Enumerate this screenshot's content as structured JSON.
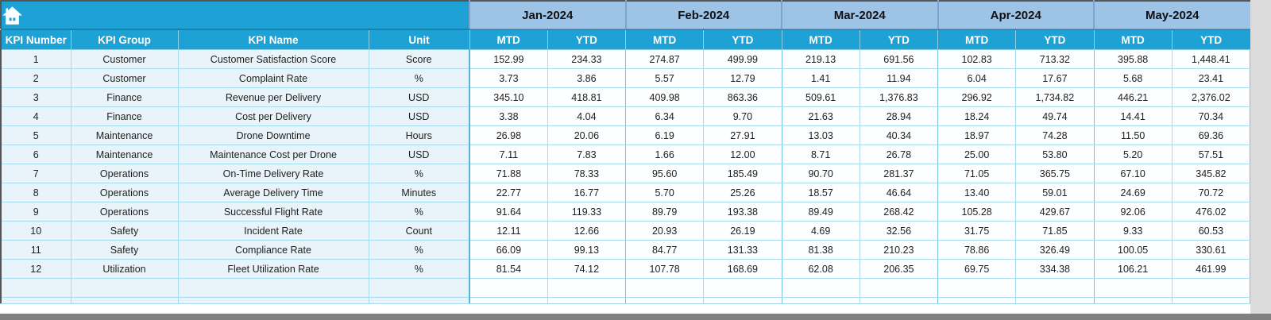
{
  "table": {
    "left_headers": [
      "KPI Number",
      "KPI Group",
      "KPI Name",
      "Unit"
    ],
    "months": [
      "Jan-2024",
      "Feb-2024",
      "Mar-2024",
      "Apr-2024",
      "May-2024"
    ],
    "sub_headers": [
      "MTD",
      "YTD"
    ],
    "rows": [
      {
        "number": "1",
        "group": "Customer",
        "name": "Customer Satisfaction Score",
        "unit": "Score",
        "values": [
          "152.99",
          "234.33",
          "274.87",
          "499.99",
          "219.13",
          "691.56",
          "102.83",
          "713.32",
          "395.88",
          "1,448.41"
        ]
      },
      {
        "number": "2",
        "group": "Customer",
        "name": "Complaint Rate",
        "unit": "%",
        "values": [
          "3.73",
          "3.86",
          "5.57",
          "12.79",
          "1.41",
          "11.94",
          "6.04",
          "17.67",
          "5.68",
          "23.41"
        ]
      },
      {
        "number": "3",
        "group": "Finance",
        "name": "Revenue per Delivery",
        "unit": "USD",
        "values": [
          "345.10",
          "418.81",
          "409.98",
          "863.36",
          "509.61",
          "1,376.83",
          "296.92",
          "1,734.82",
          "446.21",
          "2,376.02"
        ]
      },
      {
        "number": "4",
        "group": "Finance",
        "name": "Cost per Delivery",
        "unit": "USD",
        "values": [
          "3.38",
          "4.04",
          "6.34",
          "9.70",
          "21.63",
          "28.94",
          "18.24",
          "49.74",
          "14.41",
          "70.34"
        ]
      },
      {
        "number": "5",
        "group": "Maintenance",
        "name": "Drone Downtime",
        "unit": "Hours",
        "values": [
          "26.98",
          "20.06",
          "6.19",
          "27.91",
          "13.03",
          "40.34",
          "18.97",
          "74.28",
          "11.50",
          "69.36"
        ]
      },
      {
        "number": "6",
        "group": "Maintenance",
        "name": "Maintenance Cost per Drone",
        "unit": "USD",
        "values": [
          "7.11",
          "7.83",
          "1.66",
          "12.00",
          "8.71",
          "26.78",
          "25.00",
          "53.80",
          "5.20",
          "57.51"
        ]
      },
      {
        "number": "7",
        "group": "Operations",
        "name": "On-Time Delivery Rate",
        "unit": "%",
        "values": [
          "71.88",
          "78.33",
          "95.60",
          "185.49",
          "90.70",
          "281.37",
          "71.05",
          "365.75",
          "67.10",
          "345.82"
        ]
      },
      {
        "number": "8",
        "group": "Operations",
        "name": "Average Delivery Time",
        "unit": "Minutes",
        "values": [
          "22.77",
          "16.77",
          "5.70",
          "25.26",
          "18.57",
          "46.64",
          "13.40",
          "59.01",
          "24.69",
          "70.72"
        ]
      },
      {
        "number": "9",
        "group": "Operations",
        "name": "Successful Flight Rate",
        "unit": "%",
        "values": [
          "91.64",
          "119.33",
          "89.79",
          "193.38",
          "89.49",
          "268.42",
          "105.28",
          "429.67",
          "92.06",
          "476.02"
        ]
      },
      {
        "number": "10",
        "group": "Safety",
        "name": "Incident Rate",
        "unit": "Count",
        "values": [
          "12.11",
          "12.66",
          "20.93",
          "26.19",
          "4.69",
          "32.56",
          "31.75",
          "71.85",
          "9.33",
          "60.53"
        ]
      },
      {
        "number": "11",
        "group": "Safety",
        "name": "Compliance Rate",
        "unit": "%",
        "values": [
          "66.09",
          "99.13",
          "84.77",
          "131.33",
          "81.38",
          "210.23",
          "78.86",
          "326.49",
          "100.05",
          "330.61"
        ]
      },
      {
        "number": "12",
        "group": "Utilization",
        "name": "Fleet Utilization Rate",
        "unit": "%",
        "values": [
          "81.54",
          "74.12",
          "107.78",
          "168.69",
          "62.08",
          "206.35",
          "69.75",
          "334.38",
          "106.21",
          "461.99"
        ]
      }
    ],
    "empty_row_count": 2
  },
  "icons": {
    "home": "home-icon"
  },
  "colors": {
    "header_cyan": "#1ea2d5",
    "month_header_blue": "#9dc3e6",
    "row_left_bg": "#e8f4fa",
    "row_data_bg": "#fdfeff",
    "grid_line": "#a8dcec",
    "outer_border": "#555555",
    "bottom_bar": "#808080",
    "side_strip": "#dcdcdc"
  }
}
